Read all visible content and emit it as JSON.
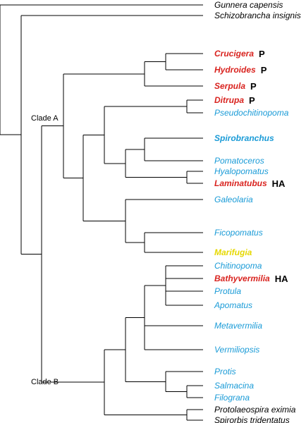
{
  "colors": {
    "black": "#000000",
    "red": "#d9231f",
    "blue": "#1a9bd7",
    "yellow": "#e6d800"
  },
  "clades": {
    "a": "Clade A",
    "b": "Clade B"
  },
  "taxa": [
    {
      "name": "Gunnera capensis",
      "color": "black",
      "bold": false,
      "mark": ""
    },
    {
      "name": "Schizobrancha insignis",
      "color": "black",
      "bold": false,
      "mark": ""
    },
    {
      "name": "Crucigera",
      "color": "red",
      "bold": true,
      "mark": "P"
    },
    {
      "name": "Hydroides",
      "color": "red",
      "bold": true,
      "mark": "P"
    },
    {
      "name": "Serpula",
      "color": "red",
      "bold": true,
      "mark": "P"
    },
    {
      "name": "Ditrupa",
      "color": "red",
      "bold": true,
      "mark": "P"
    },
    {
      "name": "Pseudochitinopoma",
      "color": "blue",
      "bold": false,
      "mark": ""
    },
    {
      "name": "Spirobranchus",
      "color": "blue",
      "bold": true,
      "mark": ""
    },
    {
      "name": "Pomatoceros",
      "color": "blue",
      "bold": false,
      "mark": ""
    },
    {
      "name": "Hyalopomatus",
      "color": "blue",
      "bold": false,
      "mark": ""
    },
    {
      "name": "Laminatubus",
      "color": "red",
      "bold": true,
      "mark": "HA"
    },
    {
      "name": "Galeolaria",
      "color": "blue",
      "bold": false,
      "mark": ""
    },
    {
      "name": "Ficopomatus",
      "color": "blue",
      "bold": false,
      "mark": ""
    },
    {
      "name": "Marifugia",
      "color": "yellow",
      "bold": true,
      "mark": ""
    },
    {
      "name": "Chitinopoma",
      "color": "blue",
      "bold": false,
      "mark": ""
    },
    {
      "name": "Bathyvermilia",
      "color": "red",
      "bold": true,
      "mark": "HA"
    },
    {
      "name": "Protula",
      "color": "blue",
      "bold": false,
      "mark": ""
    },
    {
      "name": "Apomatus",
      "color": "blue",
      "bold": false,
      "mark": ""
    },
    {
      "name": "Metavermilia",
      "color": "blue",
      "bold": false,
      "mark": ""
    },
    {
      "name": "Vermiliopsis",
      "color": "blue",
      "bold": false,
      "mark": ""
    },
    {
      "name": "Protis",
      "color": "blue",
      "bold": false,
      "mark": ""
    },
    {
      "name": "Salmacina",
      "color": "blue",
      "bold": false,
      "mark": ""
    },
    {
      "name": "Filograna",
      "color": "blue",
      "bold": false,
      "mark": ""
    },
    {
      "name": "Protolaeospira eximia",
      "color": "black",
      "bold": false,
      "mark": ""
    },
    {
      "name": "Spirorbis tridentatus",
      "color": "black",
      "bold": false,
      "mark": ""
    }
  ]
}
